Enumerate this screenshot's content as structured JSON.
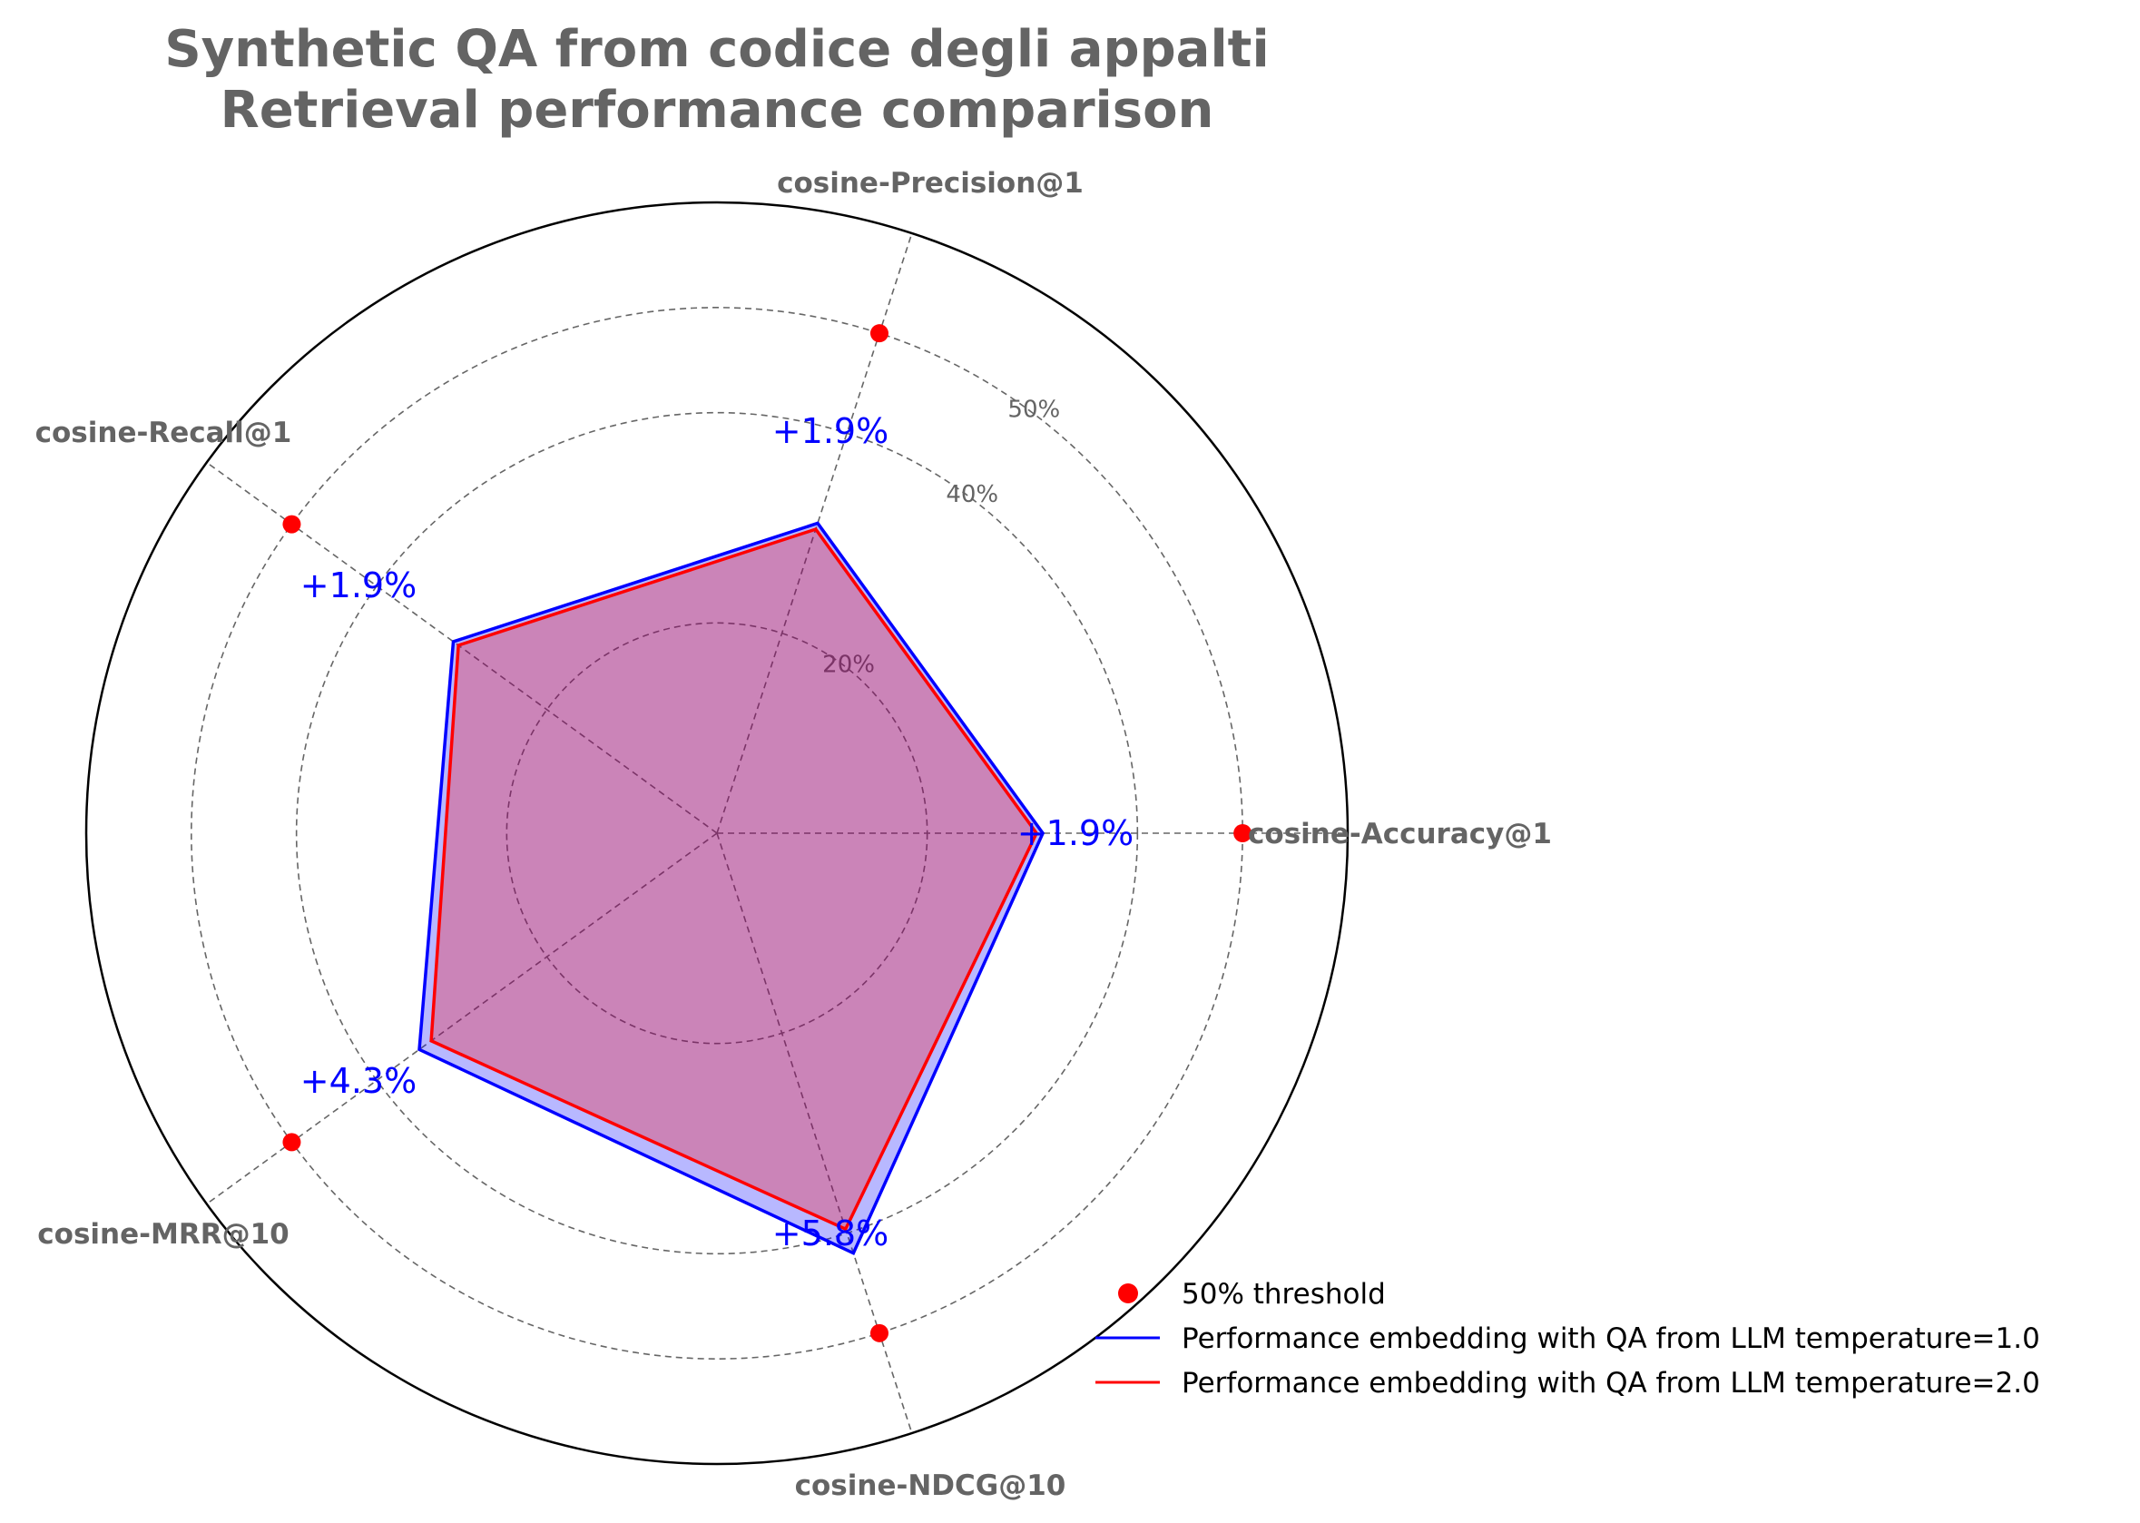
{
  "colors": {
    "text_gray": "#646464",
    "threshold_marker": "#ff0000",
    "series_1": "#0000ff",
    "series_2": "#ff0000",
    "series_1_fill": "#0000ff",
    "series_2_fill": "#ff0000",
    "annotation": "#0000ff"
  },
  "chart_data": {
    "type": "radar",
    "title_lines": [
      "Synthetic QA from codice degli appalti",
      "Retrieval performance comparison"
    ],
    "axes": [
      "cosine-Accuracy@1",
      "cosine-Precision@1",
      "cosine-Recall@1",
      "cosine-MRR@10",
      "cosine-NDCG@10"
    ],
    "axis_angles_deg": [
      0,
      72,
      144,
      216,
      288
    ],
    "radial_ticks": [
      {
        "value": 20,
        "label": "20%"
      },
      {
        "value": 40,
        "label": "40%"
      },
      {
        "value": 50,
        "label": "50%"
      }
    ],
    "radial_gridlines": [
      20,
      40,
      50
    ],
    "r_max": 60,
    "grid": true,
    "legend_position": "lower-right",
    "threshold": {
      "name": "50% threshold",
      "value": 50
    },
    "series": [
      {
        "name": "Performance embedding with QA from LLM temperature=1.0",
        "values": [
          31.0,
          31.0,
          31.0,
          35.0,
          42.0
        ]
      },
      {
        "name": "Performance embedding with QA from LLM temperature=2.0",
        "values": [
          30.4,
          30.4,
          30.4,
          33.6,
          39.6
        ]
      }
    ],
    "annotations": [
      "+1.9%",
      "+1.9%",
      "+1.9%",
      "+4.3%",
      "+5.8%"
    ]
  }
}
